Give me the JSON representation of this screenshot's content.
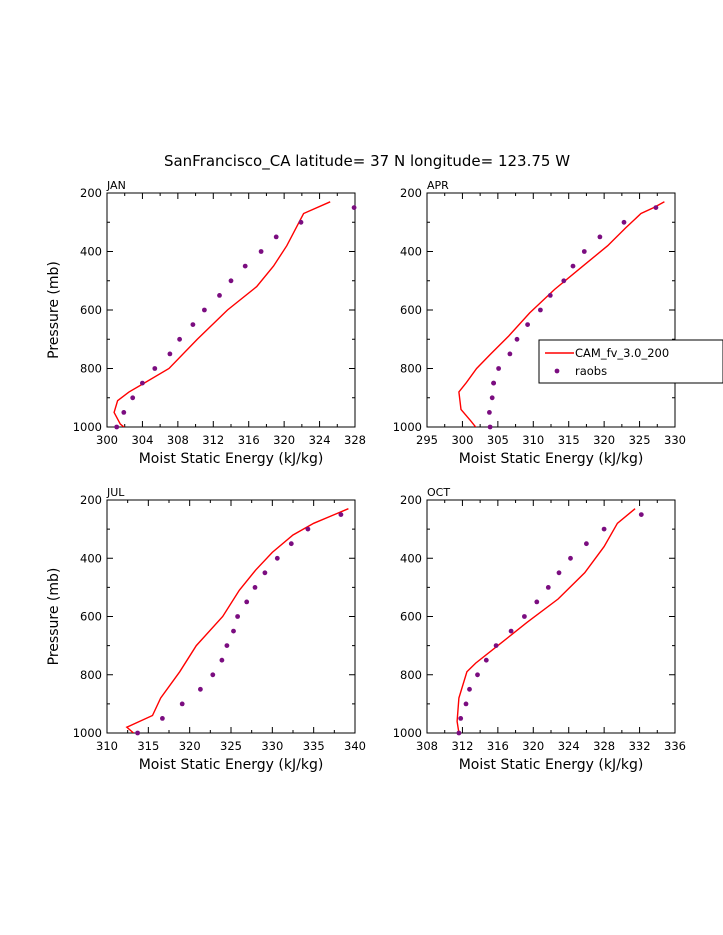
{
  "figure": {
    "title": "SanFrancisco_CA  latitude= 37 N longitude= 123.75 W"
  },
  "legend": {
    "model_label": "CAM_fv_3.0_200",
    "obs_label": "raobs"
  },
  "colors": {
    "model_line": "#ff0000",
    "obs_marker": "#7b0d80"
  },
  "chart_data": [
    {
      "type": "line",
      "panel": "JAN",
      "title": "JAN",
      "xlabel": "Moist Static Energy (kJ/kg)",
      "ylabel": "Pressure (mb)",
      "xlim": [
        300,
        328
      ],
      "ylim": [
        1000,
        200
      ],
      "xticks": [
        300,
        304,
        308,
        312,
        316,
        320,
        324,
        328
      ],
      "yticks": [
        200,
        400,
        600,
        800,
        1000
      ],
      "series": [
        {
          "name": "CAM_fv_3.0_200",
          "style": "line",
          "x": [
            302.3,
            301.5,
            300.8,
            301.2,
            302.5,
            304.2,
            307.0,
            310.2,
            313.6,
            316.9,
            318.8,
            320.3,
            322.2,
            325.2
          ],
          "y": [
            1010,
            990,
            950,
            910,
            880,
            850,
            800,
            700,
            600,
            520,
            450,
            380,
            270,
            230
          ]
        },
        {
          "name": "raobs",
          "style": "marker",
          "x": [
            301.1,
            301.9,
            302.9,
            304.0,
            305.4,
            307.1,
            308.2,
            309.7,
            311.0,
            312.7,
            314.0,
            315.6,
            317.4,
            319.1,
            321.9,
            327.9
          ],
          "y": [
            1000,
            950,
            900,
            850,
            800,
            750,
            700,
            650,
            600,
            550,
            500,
            450,
            400,
            350,
            300,
            250
          ]
        }
      ]
    },
    {
      "type": "line",
      "panel": "APR",
      "title": "APR",
      "xlabel": "Moist Static Energy (kJ/kg)",
      "ylabel": "",
      "xlim": [
        295,
        330
      ],
      "ylim": [
        1000,
        200
      ],
      "xticks": [
        295,
        300,
        305,
        310,
        315,
        320,
        325,
        330
      ],
      "yticks": [
        200,
        400,
        600,
        800,
        1000
      ],
      "series": [
        {
          "name": "CAM_fv_3.0_200",
          "style": "line",
          "x": [
            302.2,
            301.2,
            299.8,
            299.5,
            300.5,
            302.0,
            304.0,
            306.5,
            309.5,
            313.0,
            317.0,
            320.5,
            323.0,
            325.2,
            327.0,
            328.5
          ],
          "y": [
            1010,
            980,
            940,
            880,
            850,
            800,
            750,
            690,
            610,
            530,
            450,
            380,
            320,
            270,
            250,
            230
          ]
        },
        {
          "name": "raobs",
          "style": "marker",
          "x": [
            303.9,
            303.8,
            304.2,
            304.4,
            304.4,
            305.1,
            306.7,
            307.7,
            309.2,
            311.0,
            312.4,
            314.3,
            315.6,
            317.2,
            319.4,
            322.8,
            327.3
          ],
          "y": [
            1000,
            950,
            900,
            850,
            850,
            800,
            750,
            700,
            650,
            600,
            550,
            500,
            450,
            400,
            350,
            300,
            250
          ]
        }
      ]
    },
    {
      "type": "line",
      "panel": "JUL",
      "title": "JUL",
      "xlabel": "Moist Static Energy (kJ/kg)",
      "ylabel": "Pressure (mb)",
      "xlim": [
        310,
        340
      ],
      "ylim": [
        1000,
        200
      ],
      "xticks": [
        310,
        315,
        320,
        325,
        330,
        335,
        340
      ],
      "yticks": [
        200,
        400,
        600,
        800,
        1000
      ],
      "series": [
        {
          "name": "CAM_fv_3.0_200",
          "style": "line",
          "x": [
            313.2,
            312.4,
            315.5,
            316.5,
            318.8,
            320.8,
            324.0,
            326.0,
            328.0,
            330.0,
            332.5,
            335.0,
            337.5,
            339.2
          ],
          "y": [
            1000,
            980,
            940,
            880,
            790,
            700,
            600,
            510,
            440,
            380,
            320,
            280,
            250,
            230
          ]
        },
        {
          "name": "raobs",
          "style": "marker",
          "x": [
            313.7,
            316.7,
            319.1,
            321.3,
            322.8,
            323.9,
            324.5,
            325.3,
            325.8,
            326.9,
            327.9,
            329.1,
            330.6,
            332.3,
            334.3,
            338.3
          ],
          "y": [
            1000,
            950,
            900,
            850,
            800,
            750,
            700,
            650,
            600,
            550,
            500,
            450,
            400,
            350,
            300,
            250
          ]
        }
      ]
    },
    {
      "type": "line",
      "panel": "OCT",
      "title": "OCT",
      "xlabel": "Moist Static Energy (kJ/kg)",
      "ylabel": "",
      "xlim": [
        308,
        336
      ],
      "ylim": [
        1000,
        200
      ],
      "xticks": [
        308,
        312,
        316,
        320,
        324,
        328,
        332,
        336
      ],
      "yticks": [
        200,
        400,
        600,
        800,
        1000
      ],
      "series": [
        {
          "name": "CAM_fv_3.0_200",
          "style": "line",
          "x": [
            311.6,
            311.4,
            311.6,
            312.5,
            313.5,
            316.0,
            319.3,
            322.8,
            325.8,
            328.0,
            329.5,
            331.5
          ],
          "y": [
            1000,
            960,
            880,
            790,
            760,
            700,
            620,
            540,
            450,
            360,
            280,
            230
          ]
        },
        {
          "name": "raobs",
          "style": "marker",
          "x": [
            311.6,
            311.8,
            312.4,
            312.8,
            313.7,
            314.7,
            315.8,
            317.5,
            319.0,
            320.4,
            321.7,
            322.9,
            324.2,
            326.0,
            328.0,
            332.2
          ],
          "y": [
            1000,
            950,
            900,
            850,
            800,
            750,
            700,
            650,
            600,
            550,
            500,
            450,
            400,
            350,
            300,
            250
          ]
        }
      ]
    }
  ]
}
